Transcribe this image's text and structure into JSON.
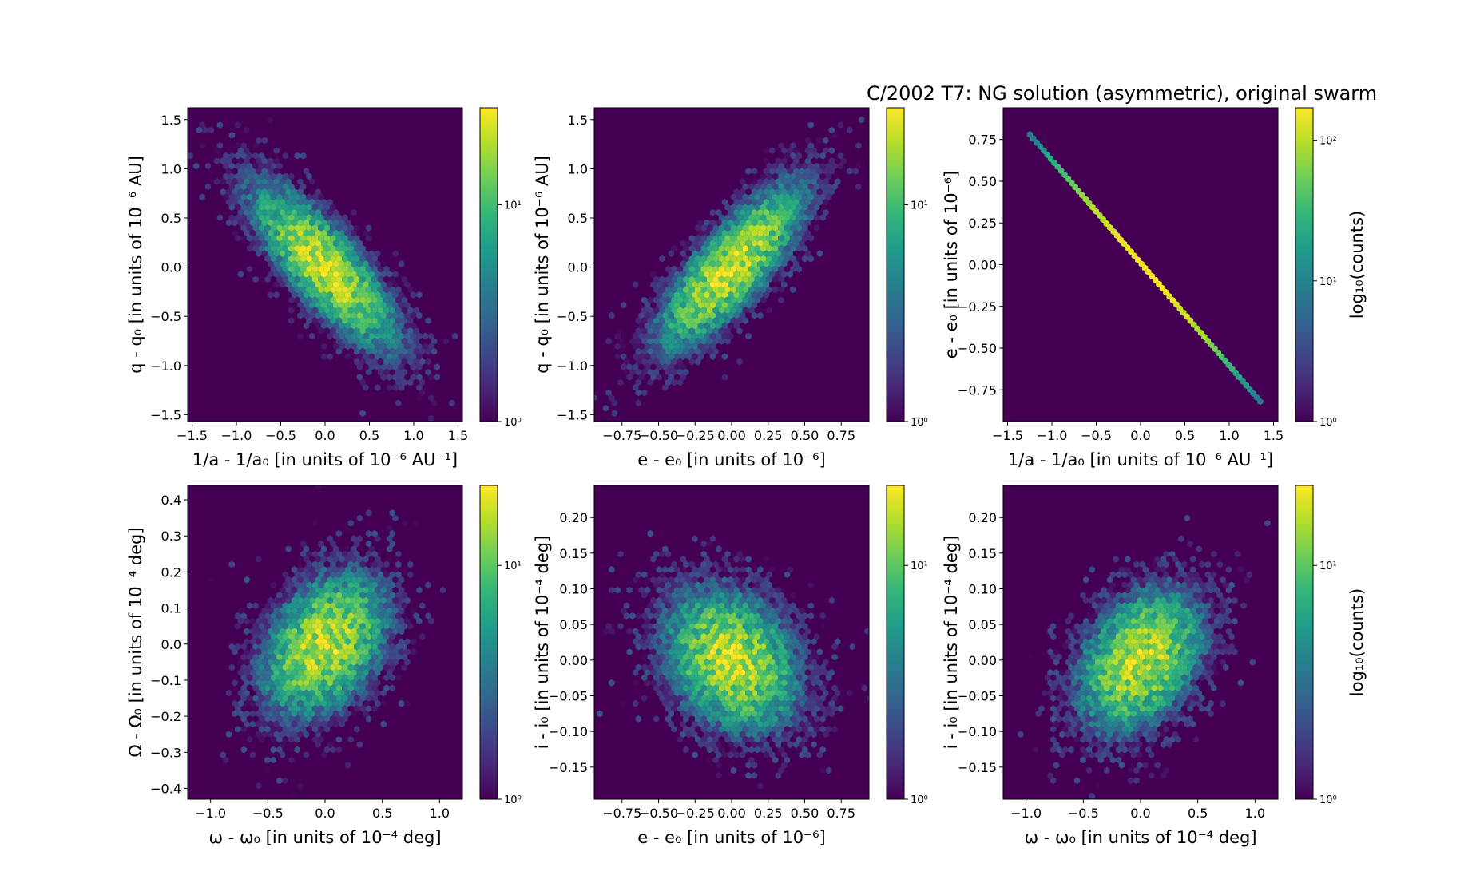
{
  "chart_data": {
    "title": "C/2002 T7:  NG solution (asymmetric), original swarm",
    "type": "hexbin",
    "scale": "log",
    "colormap": "viridis",
    "background_color": "#440154",
    "panels": [
      {
        "xlabel": "1/a - 1/a₀ [in units of 10⁻⁶ AU⁻¹]",
        "ylabel": "q - q₀ [in units of 10⁻⁶ AU]",
        "xlim": [
          -1.55,
          1.55
        ],
        "ylim": [
          -1.57,
          1.62
        ],
        "xticks": [
          "−1.5",
          "−1.0",
          "−0.5",
          "0.0",
          "0.5",
          "1.0",
          "1.5"
        ],
        "yticks": [
          "−1.5",
          "−1.0",
          "−0.5",
          "0.0",
          "0.5",
          "1.0",
          "1.5"
        ],
        "xtick_values": [
          -1.5,
          -1.0,
          -0.5,
          0.0,
          0.5,
          1.0,
          1.5
        ],
        "ytick_values": [
          -1.5,
          -1.0,
          -0.5,
          0.0,
          0.5,
          1.0,
          1.5
        ],
        "colorbar": {
          "min": 1,
          "max": 28,
          "ticks": [
            {
              "value": 1,
              "label": "10⁰"
            },
            {
              "value": 10,
              "label": "10¹"
            }
          ],
          "label": ""
        },
        "distribution": {
          "mean_x": 0.0,
          "mean_y": 0.0,
          "std_x": 0.45,
          "std_y": 0.45,
          "corr": -0.8,
          "peak_count": 28
        }
      },
      {
        "xlabel": "e - e₀ [in units of 10⁻⁶]",
        "ylabel": "q - q₀ [in units of 10⁻⁶ AU]",
        "xlim": [
          -0.94,
          0.94
        ],
        "ylim": [
          -1.57,
          1.62
        ],
        "xticks": [
          "−0.75",
          "−0.50",
          "−0.25",
          "0.00",
          "0.25",
          "0.50",
          "0.75"
        ],
        "yticks": [
          "−1.5",
          "−1.0",
          "−0.5",
          "0.0",
          "0.5",
          "1.0",
          "1.5"
        ],
        "xtick_values": [
          -0.75,
          -0.5,
          -0.25,
          0.0,
          0.25,
          0.5,
          0.75
        ],
        "ytick_values": [
          -1.5,
          -1.0,
          -0.5,
          0.0,
          0.5,
          1.0,
          1.5
        ],
        "colorbar": {
          "min": 1,
          "max": 28,
          "ticks": [
            {
              "value": 1,
              "label": "10⁰"
            },
            {
              "value": 10,
              "label": "10¹"
            }
          ],
          "label": ""
        },
        "distribution": {
          "mean_x": 0.0,
          "mean_y": 0.0,
          "std_x": 0.27,
          "std_y": 0.45,
          "corr": 0.8,
          "peak_count": 28
        }
      },
      {
        "xlabel": "1/a - 1/a₀ [in units of 10⁻⁶ AU⁻¹]",
        "ylabel": "e - e₀ [in units of 10⁻⁶]",
        "xlim": [
          -1.55,
          1.55
        ],
        "ylim": [
          -0.94,
          0.94
        ],
        "xticks": [
          "−1.5",
          "−1.0",
          "−0.5",
          "0.0",
          "0.5",
          "1.0",
          "1.5"
        ],
        "yticks": [
          "−0.75",
          "−0.50",
          "−0.25",
          "0.00",
          "0.25",
          "0.50",
          "0.75"
        ],
        "xtick_values": [
          -1.5,
          -1.0,
          -0.5,
          0.0,
          0.5,
          1.0,
          1.5
        ],
        "ytick_values": [
          -0.75,
          -0.5,
          -0.25,
          0.0,
          0.25,
          0.5,
          0.75
        ],
        "colorbar": {
          "min": 1,
          "max": 170,
          "ticks": [
            {
              "value": 1,
              "label": "10⁰"
            },
            {
              "value": 10,
              "label": "10¹"
            },
            {
              "value": 100,
              "label": "10²"
            }
          ],
          "label": "log₁₀(counts)"
        },
        "line": {
          "x_from": -1.25,
          "y_from": 0.78,
          "x_to": 1.35,
          "y_to": -0.82,
          "peak_count": 170
        }
      },
      {
        "xlabel": "ω - ω₀ [in units of 10⁻⁴ deg]",
        "ylabel": "Ω - Ω₀ [in units of 10⁻⁴ deg]",
        "xlim": [
          -1.2,
          1.2
        ],
        "ylim": [
          -0.43,
          0.44
        ],
        "xticks": [
          "−1.0",
          "−0.5",
          "0.0",
          "0.5",
          "1.0"
        ],
        "yticks": [
          "−0.4",
          "−0.3",
          "−0.2",
          "−0.1",
          "0.0",
          "0.1",
          "0.2",
          "0.3",
          "0.4"
        ],
        "xtick_values": [
          -1.0,
          -0.5,
          0.0,
          0.5,
          1.0
        ],
        "ytick_values": [
          -0.4,
          -0.3,
          -0.2,
          -0.1,
          0.0,
          0.1,
          0.2,
          0.3,
          0.4
        ],
        "colorbar": {
          "min": 1,
          "max": 22,
          "ticks": [
            {
              "value": 1,
              "label": "10⁰"
            },
            {
              "value": 10,
              "label": "10¹"
            }
          ],
          "label": ""
        },
        "distribution": {
          "mean_x": 0.0,
          "mean_y": 0.0,
          "std_x": 0.3,
          "std_y": 0.11,
          "corr": 0.35,
          "peak_count": 22
        }
      },
      {
        "xlabel": "e - e₀ [in units of 10⁻⁶]",
        "ylabel": "i - i₀ [in units of 10⁻⁴ deg]",
        "xlim": [
          -0.94,
          0.94
        ],
        "ylim": [
          -0.195,
          0.245
        ],
        "xticks": [
          "−0.75",
          "−0.50",
          "−0.25",
          "0.00",
          "0.25",
          "0.50",
          "0.75"
        ],
        "yticks": [
          "−0.15",
          "−0.10",
          "−0.05",
          "0.00",
          "0.05",
          "0.10",
          "0.15",
          "0.20"
        ],
        "xtick_values": [
          -0.75,
          -0.5,
          -0.25,
          0.0,
          0.25,
          0.5,
          0.75
        ],
        "ytick_values": [
          -0.15,
          -0.1,
          -0.05,
          0.0,
          0.05,
          0.1,
          0.15,
          0.2
        ],
        "colorbar": {
          "min": 1,
          "max": 22,
          "ticks": [
            {
              "value": 1,
              "label": "10⁰"
            },
            {
              "value": 10,
              "label": "10¹"
            }
          ],
          "label": ""
        },
        "distribution": {
          "mean_x": 0.0,
          "mean_y": 0.0,
          "std_x": 0.25,
          "std_y": 0.055,
          "corr": -0.25,
          "peak_count": 22
        }
      },
      {
        "xlabel": "ω - ω₀ [in units of 10⁻⁴ deg]",
        "ylabel": "i - i₀ [in units of 10⁻⁴ deg]",
        "xlim": [
          -1.2,
          1.2
        ],
        "ylim": [
          -0.195,
          0.245
        ],
        "xticks": [
          "−1.0",
          "−0.5",
          "0.0",
          "0.5",
          "1.0"
        ],
        "yticks": [
          "−0.15",
          "−0.10",
          "−0.05",
          "0.00",
          "0.05",
          "0.10",
          "0.15",
          "0.20"
        ],
        "xtick_values": [
          -1.0,
          -0.5,
          0.0,
          0.5,
          1.0
        ],
        "ytick_values": [
          -0.15,
          -0.1,
          -0.05,
          0.0,
          0.05,
          0.1,
          0.15,
          0.2
        ],
        "colorbar": {
          "min": 1,
          "max": 22,
          "ticks": [
            {
              "value": 1,
              "label": "10⁰"
            },
            {
              "value": 10,
              "label": "10¹"
            }
          ],
          "label": "log₁₀(counts)"
        },
        "distribution": {
          "mean_x": 0.0,
          "mean_y": 0.0,
          "std_x": 0.3,
          "std_y": 0.055,
          "corr": 0.35,
          "peak_count": 22
        }
      }
    ]
  }
}
